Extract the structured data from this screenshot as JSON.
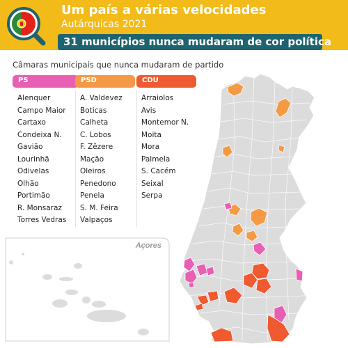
{
  "header": {
    "title": "Um país a várias velocidades",
    "subtitle": "Autárquicas 2021",
    "banner": "31 municípios nunca mudaram de cor política"
  },
  "legend": {
    "heading": "Câmaras municipais que nunca mudaram de partido",
    "parties": [
      {
        "name": "PS",
        "color": "#e85fb3"
      },
      {
        "name": "PSD",
        "color": "#f49a45"
      },
      {
        "name": "CDU",
        "color": "#ef5a31"
      }
    ]
  },
  "municipalities": {
    "ps": [
      "Alenquer",
      "Campo Maior",
      "Cartaxo",
      "Condeixa N.",
      "Gavião",
      "Lourinhã",
      "Odivelas",
      "Olhão",
      "Portimão",
      "R. Monsaraz",
      "Torres Vedras"
    ],
    "psd": [
      "A. Valdevez",
      "Boticas",
      "Calheta",
      "C. Lobos",
      "F. Zêzere",
      "Mação",
      "Oleiros",
      "Penedono",
      "Penela",
      "S. M. Feira",
      "Valpaços"
    ],
    "cdu": [
      "Arraiolos",
      "Avis",
      "Montemor N.",
      "Moita",
      "Mora",
      "Palmela",
      "S. Cacém",
      "Seixal",
      "Serpa"
    ]
  },
  "map": {
    "inset_label": "Açores",
    "base_color": "#dcdcdc",
    "border_color": "#ffffff"
  },
  "colors": {
    "header_bg": "#f2bb1a",
    "banner_bg": "#1e6470"
  },
  "icons": [
    "magnifier-icon",
    "portugal-flag-icon"
  ]
}
